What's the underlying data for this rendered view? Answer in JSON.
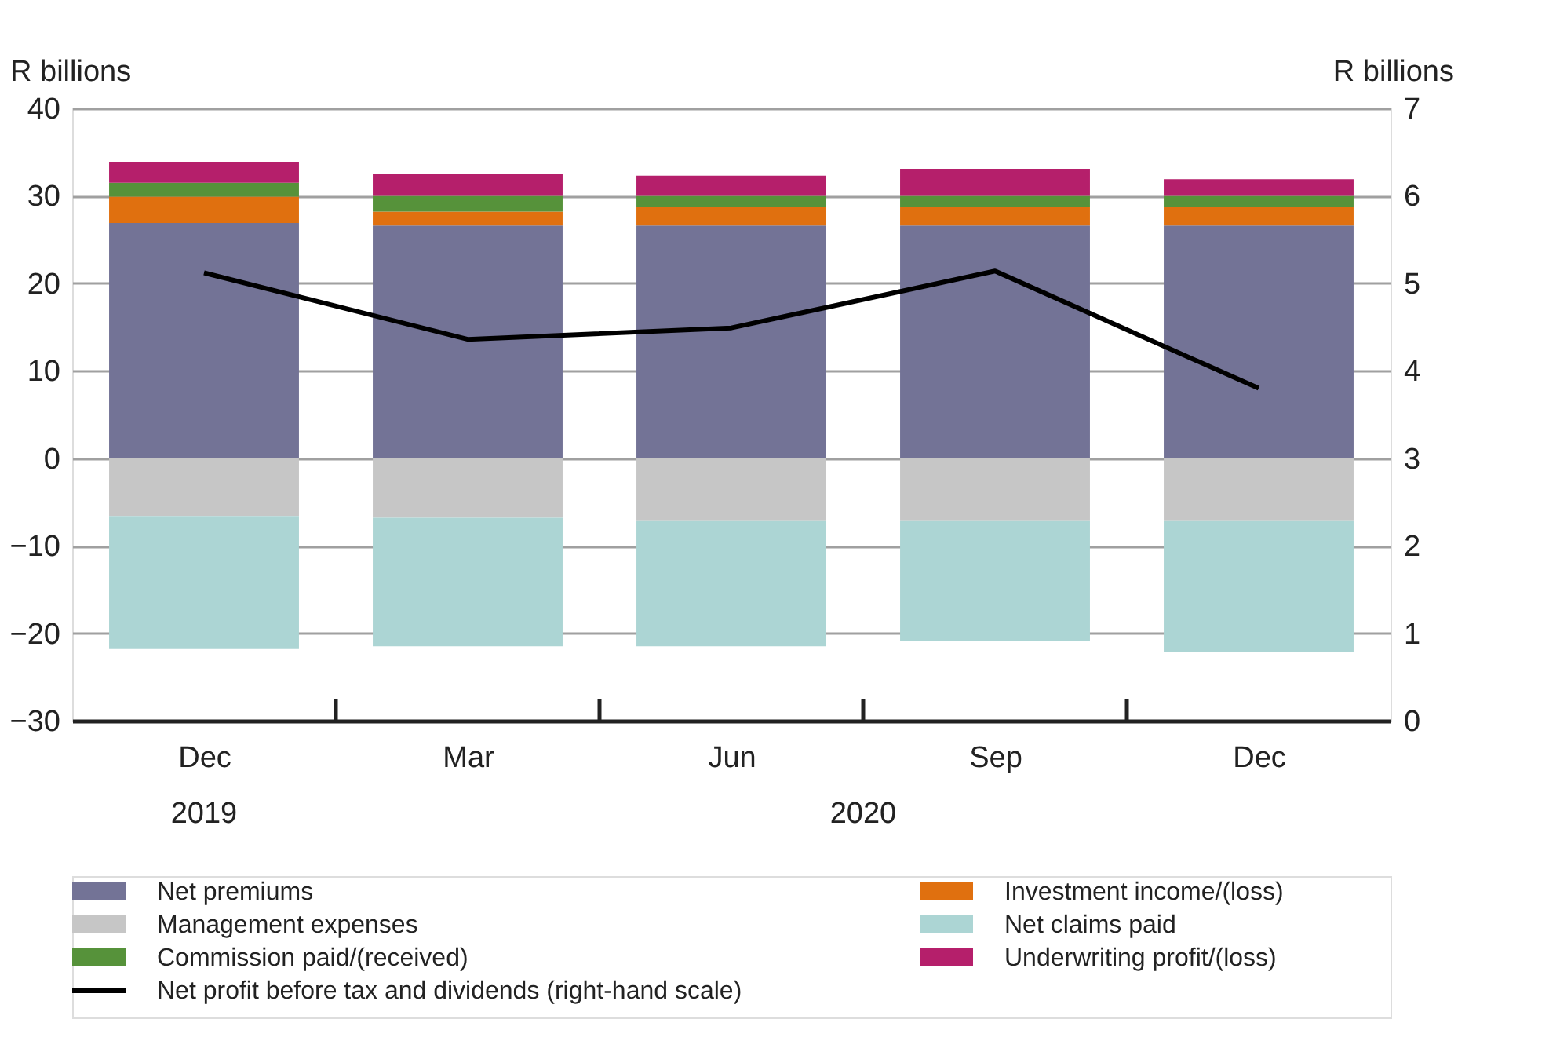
{
  "chart_data": {
    "type": "bar",
    "stacked": true,
    "categories": [
      "Dec",
      "Mar",
      "Jun",
      "Sep",
      "Dec"
    ],
    "ylabel": "R billions",
    "y2label": "R billions",
    "ylim": [
      -30,
      40
    ],
    "yticks": [
      -30,
      -20,
      -10,
      0,
      10,
      20,
      30,
      40
    ],
    "y2lim": [
      0,
      7
    ],
    "y2ticks": [
      0,
      1,
      2,
      3,
      4,
      5,
      6,
      7
    ],
    "grid": "y",
    "legend": "bottom",
    "annotations": [
      "2019",
      "2020"
    ],
    "series": [
      {
        "name": "Net premiums",
        "color": "#737396",
        "values": [
          26.9,
          26.6,
          26.6,
          26.6,
          26.6
        ]
      },
      {
        "name": "Investment income/(loss)",
        "color": "#e0700f",
        "values": [
          3.0,
          1.6,
          2.1,
          2.1,
          2.1
        ]
      },
      {
        "name": "Commission paid/(received)",
        "color": "#56923a",
        "values": [
          1.6,
          1.8,
          1.3,
          1.3,
          1.3
        ]
      },
      {
        "name": "Underwriting profit/(loss)",
        "color": "#b51f6b",
        "values": [
          2.4,
          2.5,
          2.3,
          3.1,
          1.9
        ]
      },
      {
        "name": "Management expenses",
        "color": "#c6c6c6",
        "values": [
          -6.6,
          -6.8,
          -7.1,
          -7.1,
          -7.1
        ]
      },
      {
        "name": "Net claims paid",
        "color": "#acd5d4",
        "values": [
          -15.2,
          -14.7,
          -14.4,
          -13.8,
          -15.1
        ]
      },
      {
        "name": "Net profit before tax and dividends (right-hand scale)",
        "type": "line",
        "axis": "y2",
        "color": "#000000",
        "marker": "none",
        "line_style": "solid",
        "values": [
          5.12,
          4.36,
          4.49,
          5.14,
          3.8
        ]
      }
    ]
  }
}
